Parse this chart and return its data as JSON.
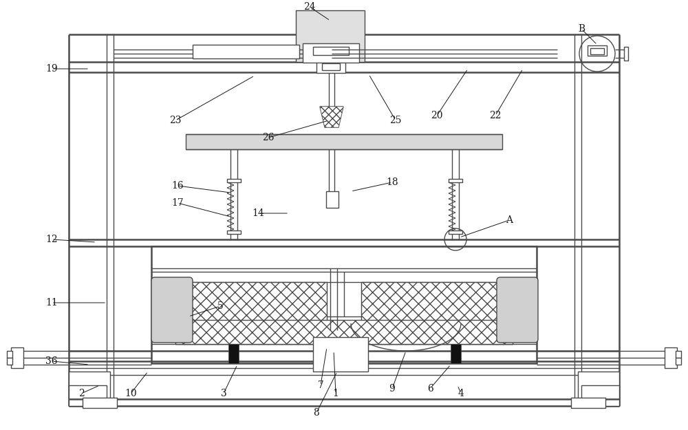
{
  "bg_color": "#ffffff",
  "lc": "#4a4a4a",
  "lw": 1.0,
  "tlw": 1.8,
  "fig_w": 10.0,
  "fig_h": 6.25
}
